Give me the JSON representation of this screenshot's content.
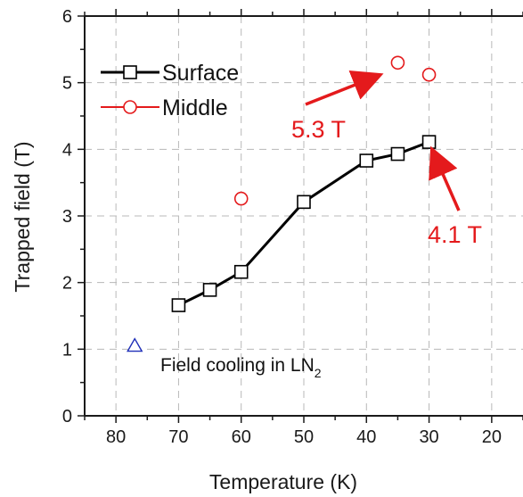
{
  "chart_data": {
    "type": "scatter",
    "xlabel": "Temperature (K)",
    "ylabel": "Trapped field (T)",
    "xlim": [
      85,
      15
    ],
    "ylim": [
      0,
      6
    ],
    "x_reversed": true,
    "xticks": [
      80,
      70,
      60,
      50,
      40,
      30,
      20
    ],
    "yticks": [
      0,
      1,
      2,
      3,
      4,
      5,
      6
    ],
    "grid": true,
    "legend_position": "top-left",
    "series": [
      {
        "name": "Surface",
        "marker": "square",
        "line": true,
        "color": "#000000",
        "points": [
          {
            "x": 70,
            "y": 1.66
          },
          {
            "x": 65,
            "y": 1.89
          },
          {
            "x": 60,
            "y": 2.16
          },
          {
            "x": 50,
            "y": 3.21
          },
          {
            "x": 40,
            "y": 3.83
          },
          {
            "x": 35,
            "y": 3.93
          },
          {
            "x": 30,
            "y": 4.11
          }
        ]
      },
      {
        "name": "Middle",
        "marker": "circle",
        "line": false,
        "color": "#e41a1c",
        "points": [
          {
            "x": 60,
            "y": 3.26
          },
          {
            "x": 35,
            "y": 5.3
          },
          {
            "x": 30,
            "y": 5.12
          }
        ]
      },
      {
        "name": "",
        "marker": "triangle",
        "line": false,
        "color": "#1f2fb8",
        "points": [
          {
            "x": 77,
            "y": 1.05
          }
        ]
      }
    ],
    "annotations": {
      "middle_max_label": "5.3 T",
      "surface_max_label": "4.1 T",
      "field_cooling_text": "Field cooling in LN",
      "field_cooling_subscript": "2",
      "color": "#e41a1c"
    }
  }
}
